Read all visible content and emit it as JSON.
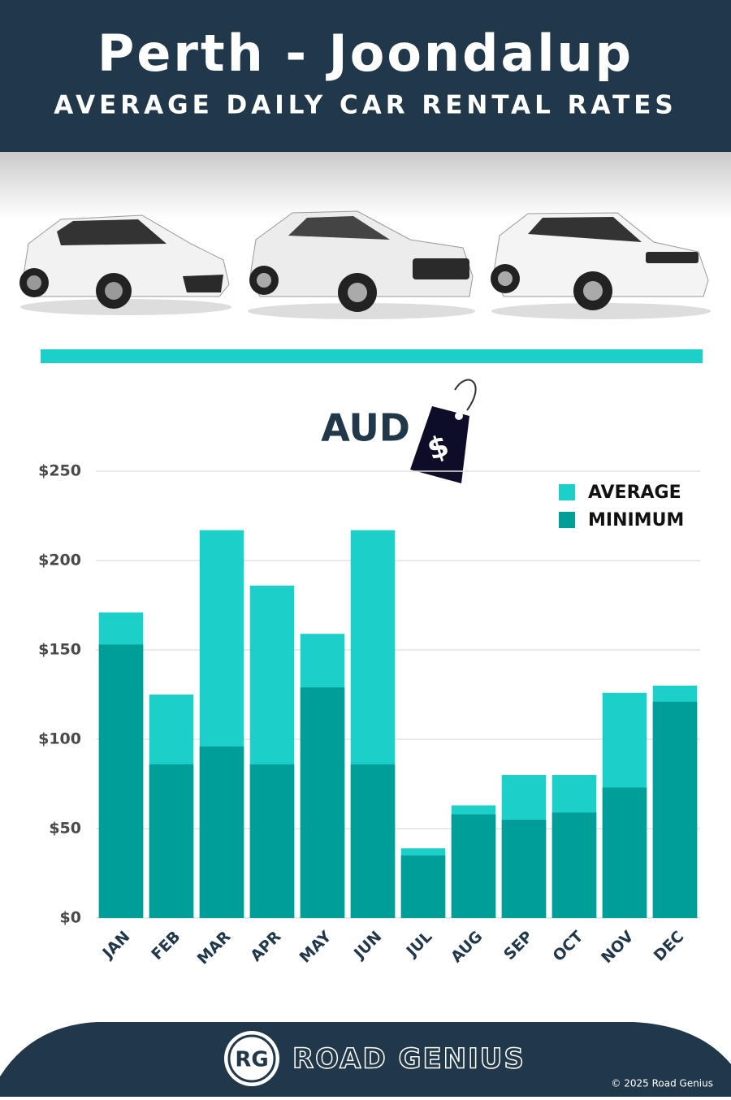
{
  "header": {
    "title": "Perth - Joondalup",
    "subtitle": "AVERAGE DAILY CAR RENTAL RATES"
  },
  "chart_data": {
    "type": "bar",
    "title": "AUD",
    "tag_label": "$",
    "categories": [
      "JAN",
      "FEB",
      "MAR",
      "APR",
      "MAY",
      "JUN",
      "JUL",
      "AUG",
      "SEP",
      "OCT",
      "NOV",
      "DEC"
    ],
    "series": [
      {
        "name": "AVERAGE",
        "color": "#1ccfc9",
        "values": [
          171,
          125,
          217,
          186,
          159,
          217,
          39,
          63,
          80,
          80,
          126,
          130
        ]
      },
      {
        "name": "MINIMUM",
        "color": "#009e98",
        "values": [
          153,
          86,
          96,
          86,
          129,
          86,
          35,
          58,
          55,
          59,
          73,
          121
        ]
      }
    ],
    "ylim": [
      0,
      250
    ],
    "yticks": [
      {
        "value": 0,
        "label": "$0"
      },
      {
        "value": 50,
        "label": "$50"
      },
      {
        "value": 100,
        "label": "$100"
      },
      {
        "value": 150,
        "label": "$150"
      },
      {
        "value": 200,
        "label": "$200"
      },
      {
        "value": 250,
        "label": "$250"
      }
    ],
    "grid": true,
    "legend": "top-right"
  },
  "footer": {
    "logo": "RG",
    "brand": "ROAD GENIUS",
    "copyright": "© 2025 Road Genius"
  }
}
